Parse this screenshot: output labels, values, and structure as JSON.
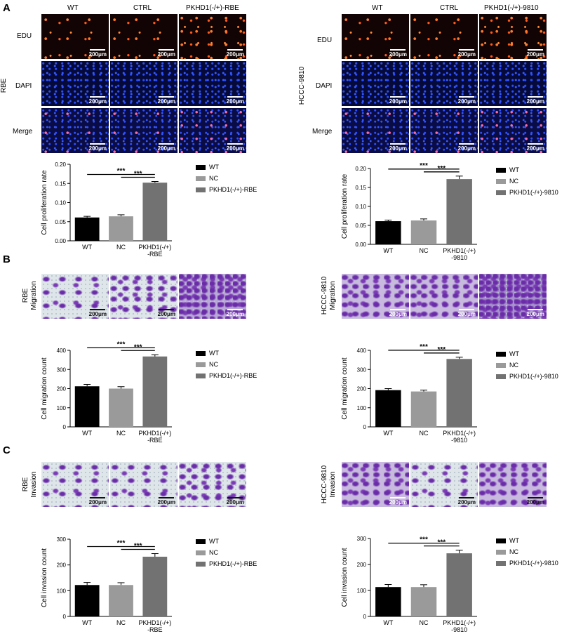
{
  "figure": {
    "panel_letters": [
      "A",
      "B",
      "C"
    ],
    "scale_bar": "200μm",
    "conditions_rbe": [
      "WT",
      "CTRL",
      "PKHD1(-/+)-RBE"
    ],
    "conditions_9810": [
      "WT",
      "CTRL",
      "PKHD1(-/+)-9810"
    ],
    "stain_rows": [
      "EDU",
      "DAPI",
      "Merge"
    ],
    "cell_line_rbe": "RBE",
    "cell_line_9810": "HCCC-9810",
    "migration_label": "Migration",
    "invasion_label": "Invasion"
  },
  "colors": {
    "wt": "#000000",
    "nc": "#9a9a9a",
    "pkhd1": "#727272"
  },
  "chart_data": [
    {
      "id": "a_rbe",
      "type": "bar",
      "categories": [
        "WT",
        "NC",
        "PKHD1(-/+)\n-RBE"
      ],
      "values": [
        0.061,
        0.064,
        0.152
      ],
      "errors": [
        0.003,
        0.004,
        0.003
      ],
      "ylabel": "Cell proliferation rate",
      "ylim": [
        0,
        0.2
      ],
      "yticks": [
        "0.00",
        "0.05",
        "0.10",
        "0.15",
        "0.20"
      ],
      "legend": [
        "WT",
        "NC",
        "PKHD1(-/+)-RBE"
      ],
      "significance": [
        "***",
        "***"
      ]
    },
    {
      "id": "a_9810",
      "type": "bar",
      "categories": [
        "WT",
        "NC",
        "PKHD1(-/+)\n-9810"
      ],
      "values": [
        0.061,
        0.063,
        0.172
      ],
      "errors": [
        0.003,
        0.004,
        0.008
      ],
      "ylabel": "Cell proliferation rate",
      "ylim": [
        0,
        0.2
      ],
      "yticks": [
        "0.00",
        "0.05",
        "0.10",
        "0.15",
        "0.20"
      ],
      "legend": [
        "WT",
        "NC",
        "PKHD1(-/+)-9810"
      ],
      "significance": [
        "***",
        "***"
      ]
    },
    {
      "id": "b_rbe",
      "type": "bar",
      "categories": [
        "WT",
        "NC",
        "PKHD1(-/+)\n-RBE"
      ],
      "values": [
        212,
        200,
        368
      ],
      "errors": [
        10,
        10,
        9
      ],
      "ylabel": "Cell migration count",
      "ylim": [
        0,
        400
      ],
      "yticks": [
        "0",
        "100",
        "200",
        "300",
        "400"
      ],
      "legend": [
        "WT",
        "NC",
        "PKHD1(-/+)-RBE"
      ],
      "significance": [
        "***",
        "***"
      ]
    },
    {
      "id": "b_9810",
      "type": "bar",
      "categories": [
        "WT",
        "NC",
        "PKHD1(-/+)\n-9810"
      ],
      "values": [
        192,
        185,
        355
      ],
      "errors": [
        8,
        7,
        9
      ],
      "ylabel": "Cell migration count",
      "ylim": [
        0,
        400
      ],
      "yticks": [
        "0",
        "100",
        "200",
        "300",
        "400"
      ],
      "legend": [
        "WT",
        "NC",
        "PKHD1(-/+)-9810"
      ],
      "significance": [
        "***",
        "***"
      ]
    },
    {
      "id": "c_rbe",
      "type": "bar",
      "categories": [
        "WT",
        "NC",
        "PKHD1(-/+)\n-RBE"
      ],
      "values": [
        122,
        122,
        232
      ],
      "errors": [
        10,
        9,
        12
      ],
      "ylabel": "Cell invasion count",
      "ylim": [
        0,
        300
      ],
      "yticks": [
        "0",
        "100",
        "200",
        "300"
      ],
      "legend": [
        "WT",
        "NC",
        "PKHD1(-/+)-RBE"
      ],
      "significance": [
        "***",
        "***"
      ]
    },
    {
      "id": "c_9810",
      "type": "bar",
      "categories": [
        "WT",
        "NC",
        "PKHD1(-/+)\n-9810"
      ],
      "values": [
        113,
        113,
        243
      ],
      "errors": [
        10,
        9,
        12
      ],
      "ylabel": "Cell invasion count",
      "ylim": [
        0,
        300
      ],
      "yticks": [
        "0",
        "100",
        "200",
        "300"
      ],
      "legend": [
        "WT",
        "NC",
        "PKHD1(-/+)-9810"
      ],
      "significance": [
        "***",
        "***"
      ]
    }
  ]
}
